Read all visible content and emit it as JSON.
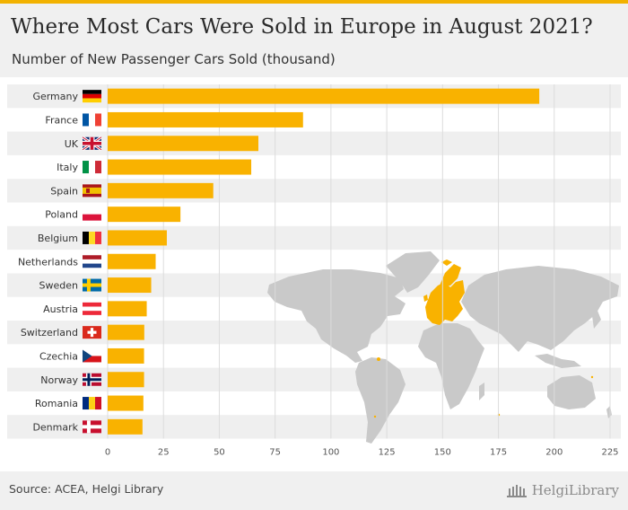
{
  "title": "Where Most Cars Were Sold in Europe in August 2021?",
  "subtitle": "Number of New Passenger Cars Sold (thousand)",
  "source": "Source: ACEA, Helgi Library",
  "logo_text": "HelgiLibrary",
  "colors": {
    "bar": "#f9b200",
    "header_bg": "#f0f0f0",
    "stripe": "#efefef",
    "map_land": "#c9c9c9",
    "map_highlight": "#f9b200"
  },
  "icons": {
    "logo": "helgi-library-logo-icon",
    "map": "world-map-illustration"
  },
  "chart_data": {
    "type": "bar",
    "orientation": "horizontal",
    "title": "Where Most Cars Were Sold in Europe in August 2021?",
    "subtitle": "Number of New Passenger Cars Sold (thousand)",
    "categories": [
      "Germany",
      "France",
      "UK",
      "Italy",
      "Spain",
      "Poland",
      "Belgium",
      "Netherlands",
      "Sweden",
      "Austria",
      "Switzerland",
      "Czechia",
      "Norway",
      "Romania",
      "Denmark"
    ],
    "values": [
      193.3,
      87.5,
      67.5,
      64.3,
      47.3,
      32.6,
      26.5,
      21.5,
      19.5,
      17.5,
      16.4,
      16.3,
      16.3,
      16.0,
      15.6
    ],
    "xlim": [
      0,
      225
    ],
    "xticks": [
      0,
      25,
      50,
      75,
      100,
      125,
      150,
      175,
      200,
      225
    ],
    "grid": true,
    "flags": [
      "germany-flag-icon",
      "france-flag-icon",
      "uk-flag-icon",
      "italy-flag-icon",
      "spain-flag-icon",
      "poland-flag-icon",
      "belgium-flag-icon",
      "netherlands-flag-icon",
      "sweden-flag-icon",
      "austria-flag-icon",
      "switzerland-flag-icon",
      "czechia-flag-icon",
      "norway-flag-icon",
      "romania-flag-icon",
      "denmark-flag-icon"
    ]
  }
}
